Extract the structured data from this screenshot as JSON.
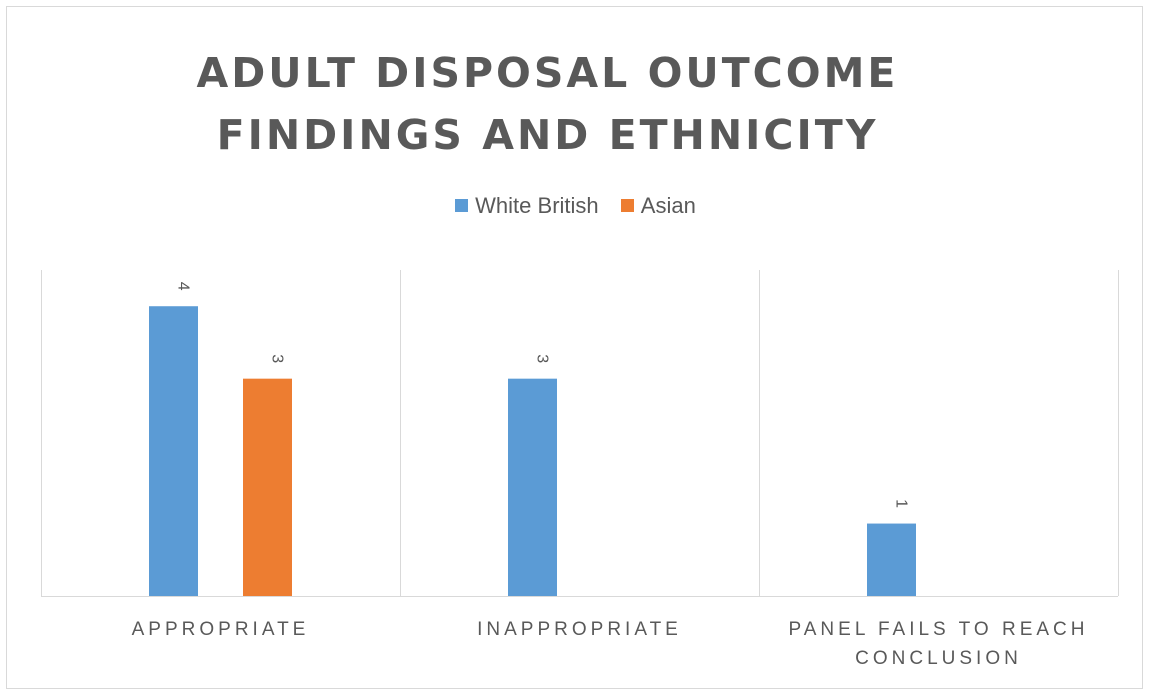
{
  "chart_data": {
    "type": "bar",
    "title_lines": [
      "ADULT DISPOSAL OUTCOME",
      "FINDINGS AND ETHNICITY"
    ],
    "categories": [
      {
        "label_lines": [
          "APPROPRIATE"
        ]
      },
      {
        "label_lines": [
          "INAPPROPRIATE"
        ]
      },
      {
        "label_lines": [
          "PANEL FAILS TO REACH",
          "CONCLUSION"
        ]
      }
    ],
    "series": [
      {
        "name": "White British",
        "color": "#5b9bd5",
        "values": [
          4,
          3,
          1
        ]
      },
      {
        "name": "Asian",
        "color": "#ed7d31",
        "values": [
          3,
          null,
          null
        ]
      }
    ],
    "ylim": [
      0,
      4.5
    ],
    "grid": false,
    "category_separators": true,
    "data_labels": true,
    "data_label_rotation": "90deg",
    "legend_position": "top"
  }
}
